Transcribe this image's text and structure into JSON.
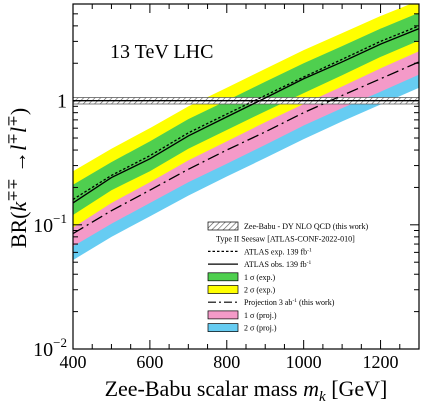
{
  "chart_data": {
    "type": "line",
    "annotation": "13 TeV LHC",
    "xlabel": "Zee-Babu scalar mass",
    "xlabel_symbol": "m",
    "xlabel_sub": "k",
    "xlabel_unit": "[GeV]",
    "ylabel_parts": {
      "pre": "BR(",
      "k": "k",
      "k_sup": "∓∓",
      "arrow": " →",
      "l1": "l",
      "l1_sup": "∓",
      "l2": "l",
      "l2_sup": "∓",
      "post": ")"
    },
    "xlim": [
      400,
      1300
    ],
    "ylim": [
      0.01,
      6
    ],
    "yscale": "log",
    "xticks": [
      400,
      600,
      800,
      1000,
      1200
    ],
    "yticks": [
      {
        "value": 1,
        "label": "1",
        "exp": ""
      },
      {
        "value": 0.1,
        "label": "10",
        "exp": "−1"
      },
      {
        "value": 0.01,
        "label": "10",
        "exp": "−2"
      }
    ],
    "legend_position": "lower-right",
    "x": [
      400,
      500,
      600,
      700,
      800,
      900,
      1000,
      1100,
      1200,
      1300
    ],
    "series": [
      {
        "key": "zeebabu",
        "name": "Zee-Babu - DY NLO QCD (this work)",
        "style": "hatched-band",
        "lower": [
          0.94,
          0.94,
          0.94,
          0.94,
          0.94,
          0.94,
          0.94,
          0.94,
          0.94,
          0.94
        ],
        "upper": [
          1.06,
          1.06,
          1.06,
          1.06,
          1.06,
          1.06,
          1.06,
          1.06,
          1.06,
          1.06
        ],
        "color": "#555555"
      },
      {
        "key": "header",
        "name": "Type II Seesaw [ATLAS-CONF-2022-010]",
        "style": "header"
      },
      {
        "key": "atlas_exp",
        "name": "ATLAS exp. 139 fb",
        "name_sup": "-1",
        "style": "dotted",
        "values": [
          0.16,
          0.25,
          0.36,
          0.55,
          0.78,
          1.1,
          1.55,
          2.15,
          3.0,
          4.0
        ],
        "color": "#000000"
      },
      {
        "key": "atlas_obs",
        "name": "ATLAS obs. 139 fb",
        "name_sup": "-1",
        "style": "solid",
        "values": [
          0.15,
          0.24,
          0.34,
          0.52,
          0.74,
          1.05,
          1.5,
          2.05,
          2.85,
          3.8
        ],
        "color": "#000000"
      },
      {
        "key": "exp_1sigma",
        "name": "1 σ (exp.)",
        "style": "band",
        "lower": [
          0.12,
          0.19,
          0.27,
          0.41,
          0.58,
          0.82,
          1.15,
          1.6,
          2.25,
          3.05
        ],
        "upper": [
          0.21,
          0.32,
          0.47,
          0.71,
          1.0,
          1.42,
          2.0,
          2.75,
          3.8,
          5.1
        ],
        "color": "#4fcf4f"
      },
      {
        "key": "exp_2sigma",
        "name": "2 σ (exp.)",
        "style": "band",
        "lower": [
          0.095,
          0.15,
          0.22,
          0.33,
          0.47,
          0.67,
          0.94,
          1.3,
          1.82,
          2.5
        ],
        "upper": [
          0.27,
          0.41,
          0.6,
          0.9,
          1.27,
          1.8,
          2.55,
          3.5,
          4.8,
          6.4
        ],
        "color": "#ffff00"
      },
      {
        "key": "proj",
        "name": "Projection 3 ab",
        "name_sup": "-1",
        "name_post": " (this work)",
        "style": "dashdot",
        "values": [
          0.085,
          0.13,
          0.19,
          0.28,
          0.4,
          0.56,
          0.8,
          1.1,
          1.5,
          2.05
        ],
        "color": "#000000"
      },
      {
        "key": "proj_1sigma",
        "name": "1 σ (proj.)",
        "style": "band",
        "lower": [
          0.067,
          0.102,
          0.15,
          0.22,
          0.31,
          0.44,
          0.63,
          0.87,
          1.18,
          1.62
        ],
        "upper": [
          0.11,
          0.165,
          0.245,
          0.36,
          0.51,
          0.72,
          1.03,
          1.42,
          1.95,
          2.65
        ],
        "color": "#f49ac8"
      },
      {
        "key": "proj_2sigma",
        "name": "2 σ (proj.)",
        "style": "band",
        "lower": [
          0.052,
          0.08,
          0.117,
          0.172,
          0.245,
          0.345,
          0.49,
          0.68,
          0.93,
          1.27
        ],
        "upper": [
          0.14,
          0.21,
          0.31,
          0.46,
          0.65,
          0.92,
          1.31,
          1.8,
          2.45,
          3.35
        ],
        "color": "#66ccf2"
      }
    ]
  }
}
